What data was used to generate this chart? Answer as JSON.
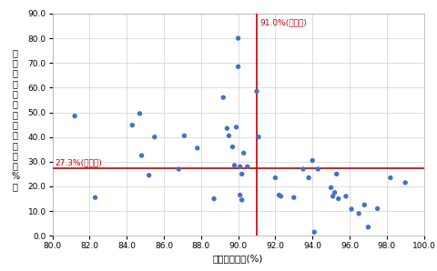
{
  "xlabel": "経常収支比率(%)",
  "ylabel_chars": [
    "財",
    "政",
    "調",
    "整",
    "基",
    "金",
    "等",
    "残",
    "高",
    "比",
    "率",
    "（",
    "%",
    "）"
  ],
  "xlim": [
    80.0,
    100.0
  ],
  "ylim": [
    0.0,
    90.0
  ],
  "xticks": [
    80.0,
    82.0,
    84.0,
    86.0,
    88.0,
    90.0,
    92.0,
    94.0,
    96.0,
    98.0,
    100.0
  ],
  "yticks": [
    0.0,
    10.0,
    20.0,
    30.0,
    40.0,
    50.0,
    60.0,
    70.0,
    80.0,
    90.0
  ],
  "vline_x": 91.0,
  "hline_y": 27.3,
  "vline_label": "91.0%(県平均)",
  "hline_label": "27.3%(県平均)",
  "dot_color": "#4472C4",
  "line_color": "#C00000",
  "background_color": "#FFFFFF",
  "grid_color": "#D0D0D0",
  "scatter_x": [
    81.2,
    82.3,
    84.3,
    84.7,
    84.8,
    85.2,
    85.5,
    86.8,
    87.1,
    87.8,
    88.7,
    89.2,
    89.4,
    89.5,
    89.7,
    89.8,
    89.9,
    90.0,
    90.0,
    90.1,
    90.1,
    90.2,
    90.2,
    90.3,
    90.5,
    91.0,
    91.1,
    92.0,
    92.2,
    92.3,
    93.0,
    93.5,
    93.8,
    94.0,
    94.1,
    94.3,
    95.0,
    95.1,
    95.2,
    95.3,
    95.4,
    95.8,
    96.1,
    96.5,
    96.8,
    97.0,
    97.5,
    98.2,
    99.0
  ],
  "scatter_y": [
    48.5,
    15.5,
    44.8,
    49.5,
    32.5,
    24.5,
    40.0,
    27.0,
    40.5,
    35.5,
    15.0,
    56.0,
    43.5,
    40.5,
    36.0,
    28.5,
    44.0,
    68.5,
    80.0,
    28.0,
    16.5,
    25.0,
    14.5,
    33.5,
    28.0,
    58.5,
    40.0,
    23.5,
    16.5,
    16.0,
    15.5,
    27.0,
    23.5,
    30.5,
    1.5,
    27.0,
    19.5,
    16.0,
    17.5,
    25.0,
    15.0,
    16.0,
    10.8,
    9.0,
    12.5,
    3.5,
    11.0,
    23.5,
    21.5
  ]
}
